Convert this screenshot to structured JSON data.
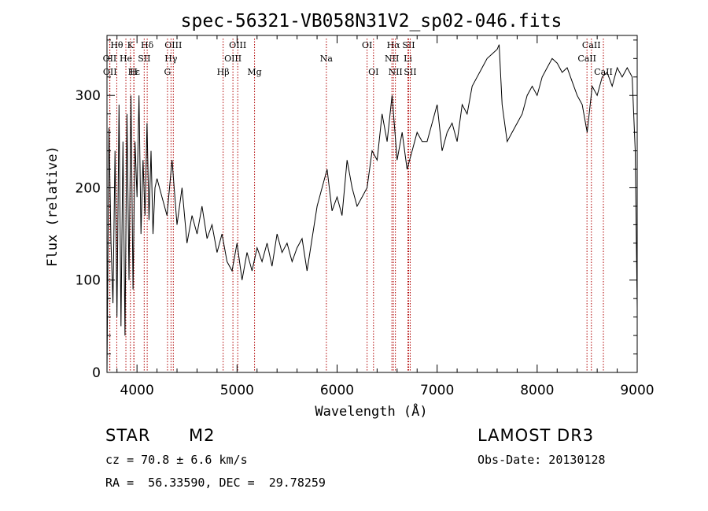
{
  "chart_data": {
    "type": "line",
    "title": "spec-56321-VB058N31V2_sp02-046.fits",
    "xlabel": "Wavelength (Å)",
    "ylabel": "Flux (relative)",
    "xlim": [
      3700,
      9000
    ],
    "ylim": [
      0,
      365
    ],
    "xticks": [
      4000,
      5000,
      6000,
      7000,
      8000,
      9000
    ],
    "yticks": [
      0,
      100,
      200,
      300
    ],
    "series": [
      {
        "name": "flux",
        "x": [
          3700,
          3720,
          3740,
          3760,
          3780,
          3800,
          3820,
          3840,
          3860,
          3880,
          3900,
          3920,
          3940,
          3960,
          3980,
          4000,
          4020,
          4040,
          4060,
          4080,
          4100,
          4120,
          4140,
          4160,
          4180,
          4200,
          4250,
          4300,
          4350,
          4400,
          4450,
          4500,
          4550,
          4600,
          4650,
          4700,
          4750,
          4800,
          4850,
          4900,
          4950,
          5000,
          5050,
          5100,
          5150,
          5200,
          5250,
          5300,
          5350,
          5400,
          5450,
          5500,
          5550,
          5600,
          5650,
          5700,
          5750,
          5800,
          5850,
          5900,
          5950,
          6000,
          6050,
          6100,
          6150,
          6200,
          6250,
          6300,
          6350,
          6400,
          6450,
          6500,
          6550,
          6600,
          6650,
          6700,
          6750,
          6800,
          6850,
          6900,
          6950,
          7000,
          7050,
          7100,
          7150,
          7200,
          7250,
          7300,
          7350,
          7400,
          7450,
          7500,
          7550,
          7600,
          7620,
          7650,
          7700,
          7750,
          7800,
          7850,
          7900,
          7950,
          8000,
          8050,
          8100,
          8150,
          8200,
          8250,
          8300,
          8350,
          8400,
          8450,
          8500,
          8550,
          8600,
          8650,
          8700,
          8750,
          8800,
          8850,
          8900,
          8950,
          8980,
          9000
        ],
        "y": [
          0,
          265,
          140,
          75,
          240,
          60,
          290,
          50,
          250,
          40,
          280,
          100,
          300,
          90,
          250,
          190,
          300,
          150,
          230,
          170,
          270,
          165,
          240,
          150,
          200,
          210,
          190,
          170,
          230,
          160,
          200,
          140,
          170,
          150,
          180,
          145,
          160,
          130,
          150,
          120,
          110,
          140,
          100,
          130,
          110,
          135,
          120,
          140,
          115,
          150,
          130,
          140,
          120,
          135,
          145,
          110,
          145,
          180,
          200,
          220,
          175,
          190,
          170,
          230,
          200,
          180,
          190,
          200,
          240,
          230,
          280,
          250,
          300,
          230,
          260,
          220,
          240,
          260,
          250,
          250,
          270,
          290,
          240,
          260,
          270,
          250,
          290,
          280,
          310,
          320,
          330,
          340,
          345,
          350,
          355,
          290,
          250,
          260,
          270,
          280,
          300,
          310,
          300,
          320,
          330,
          340,
          335,
          325,
          330,
          315,
          300,
          290,
          260,
          310,
          300,
          320,
          325,
          310,
          330,
          320,
          330,
          320,
          240,
          70
        ]
      }
    ],
    "lines": [
      {
        "name": "Hθ",
        "x": 3798,
        "row": 0
      },
      {
        "name": "K",
        "x": 3934,
        "row": 0
      },
      {
        "name": "Hδ",
        "x": 4102,
        "row": 0
      },
      {
        "name": "OIII",
        "x": 4363,
        "row": 0
      },
      {
        "name": "OIII",
        "x": 5007,
        "row": 0
      },
      {
        "name": "OI",
        "x": 6300,
        "row": 0
      },
      {
        "name": "Hα",
        "x": 6563,
        "row": 0
      },
      {
        "name": "SII",
        "x": 6716,
        "row": 0
      },
      {
        "name": "CaII",
        "x": 8542,
        "row": 0
      },
      {
        "name": "OII",
        "x": 3727,
        "row": 1
      },
      {
        "name": "He",
        "x": 3889,
        "row": 1
      },
      {
        "name": "SII",
        "x": 4072,
        "row": 1
      },
      {
        "name": "Hγ",
        "x": 4340,
        "row": 1
      },
      {
        "name": "OIII",
        "x": 4959,
        "row": 1
      },
      {
        "name": "Na",
        "x": 5893,
        "row": 1
      },
      {
        "name": "NII",
        "x": 6548,
        "row": 1
      },
      {
        "name": "Li",
        "x": 6708,
        "row": 1
      },
      {
        "name": "CaII",
        "x": 8498,
        "row": 1
      },
      {
        "name": "OII",
        "x": 3729,
        "row": 2
      },
      {
        "name": "Hε",
        "x": 3970,
        "row": 2
      },
      {
        "name": "H",
        "x": 3968,
        "row": 2
      },
      {
        "name": "G",
        "x": 4305,
        "row": 2
      },
      {
        "name": "Hβ",
        "x": 4861,
        "row": 2
      },
      {
        "name": "Mg",
        "x": 5175,
        "row": 2
      },
      {
        "name": "OI",
        "x": 6364,
        "row": 2
      },
      {
        "name": "NII",
        "x": 6583,
        "row": 2
      },
      {
        "name": "SII",
        "x": 6731,
        "row": 2
      },
      {
        "name": "CaII",
        "x": 8662,
        "row": 2
      }
    ]
  },
  "info": {
    "object_class": "STAR",
    "subclass": "M2",
    "survey": "LAMOST DR3",
    "redshift": "cz = 70.8 ± 6.6 km/s",
    "obs_date": "Obs-Date: 20130128",
    "coords": "RA =  56.33590, DEC =  29.78259"
  },
  "colors": {
    "spectrum": "#000000",
    "line_marker": "#b00000",
    "axis": "#000000"
  }
}
